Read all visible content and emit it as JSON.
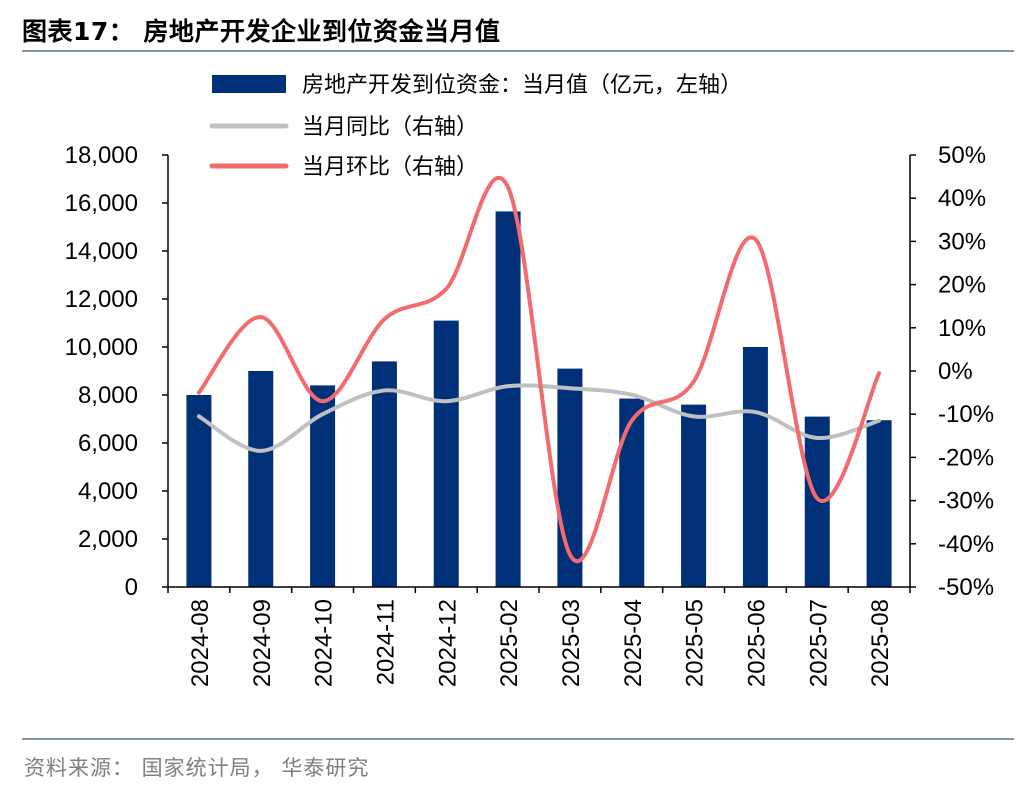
{
  "title": "图表17：  房地产开发企业到位资金当月值",
  "source": "资料来源：  国家统计局，  华泰研究",
  "colors": {
    "bar": "#003078",
    "yoy": "#c0c0c0",
    "mom": "#f26b6e",
    "rule": "#8494b4",
    "axis": "#000000"
  },
  "chart_data": {
    "type": "bar+line",
    "categories": [
      "2024-08",
      "2024-09",
      "2024-10",
      "2024-11",
      "2024-12",
      "2025-02",
      "2025-03",
      "2025-04",
      "2025-05",
      "2025-06",
      "2025-07",
      "2025-08"
    ],
    "series": [
      {
        "name": "房地产开发到位资金：当月值（亿元，左轴）",
        "type": "bar",
        "axis": "left",
        "values": [
          8000,
          9000,
          8400,
          9400,
          11100,
          15650,
          9100,
          7850,
          7600,
          10000,
          7100,
          6950
        ]
      },
      {
        "name": "当月同比（右轴）",
        "type": "line",
        "axis": "right",
        "values": [
          -10.5,
          -18.5,
          -10,
          -4.5,
          -7,
          -3.5,
          -4,
          -5.5,
          -10.5,
          -9.5,
          -15.5,
          -11.5
        ]
      },
      {
        "name": "当月环比（右轴）",
        "type": "line",
        "axis": "right",
        "values": [
          -5,
          12.5,
          -7,
          12,
          19,
          42.5,
          -42.5,
          -11.5,
          -2.5,
          30.5,
          -29.5,
          -0.5
        ]
      }
    ],
    "left_axis": {
      "ylim": [
        0,
        18000
      ],
      "ticks": [
        "0",
        "2,000",
        "4,000",
        "6,000",
        "8,000",
        "10,000",
        "12,000",
        "14,000",
        "16,000",
        "18,000"
      ]
    },
    "right_axis": {
      "ylim": [
        -50,
        50
      ],
      "ticks": [
        "-50%",
        "-40%",
        "-30%",
        "-20%",
        "-10%",
        "0%",
        "10%",
        "20%",
        "30%",
        "40%",
        "50%"
      ]
    },
    "legend_position": "top",
    "grid": false
  }
}
